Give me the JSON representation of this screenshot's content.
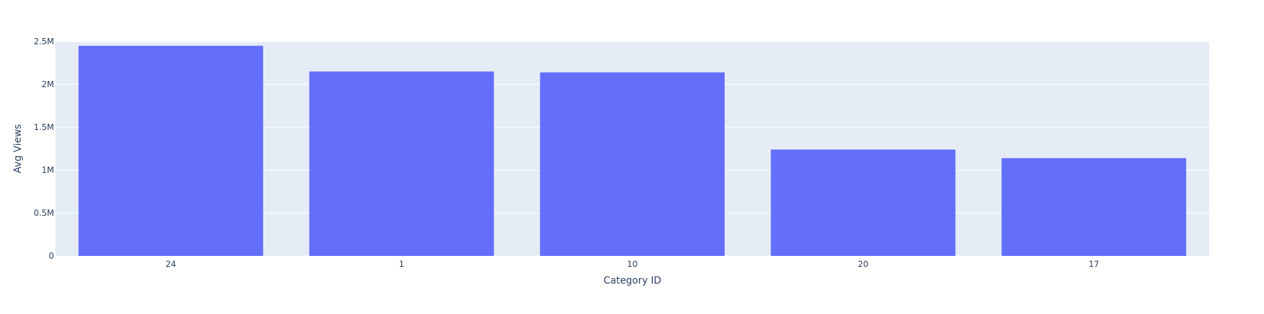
{
  "chart_data": {
    "type": "bar",
    "categories": [
      "24",
      "1",
      "10",
      "20",
      "17"
    ],
    "values": [
      2450000,
      2150000,
      2140000,
      1240000,
      1140000
    ],
    "title": "",
    "xlabel": "Category ID",
    "ylabel": "Avg Views",
    "ylim": [
      0,
      2500000
    ],
    "yticks": [
      0,
      500000,
      1000000,
      1500000,
      2000000,
      2500000
    ],
    "ytick_labels": [
      "0",
      "0.5M",
      "1M",
      "1.5M",
      "2M",
      "2.5M"
    ],
    "grid": true,
    "legend": "none"
  },
  "colors": {
    "bar": "#636efa",
    "plot_background": "#e5ecf6",
    "gridline": "#ffffff",
    "text": "#2a3f5f"
  }
}
